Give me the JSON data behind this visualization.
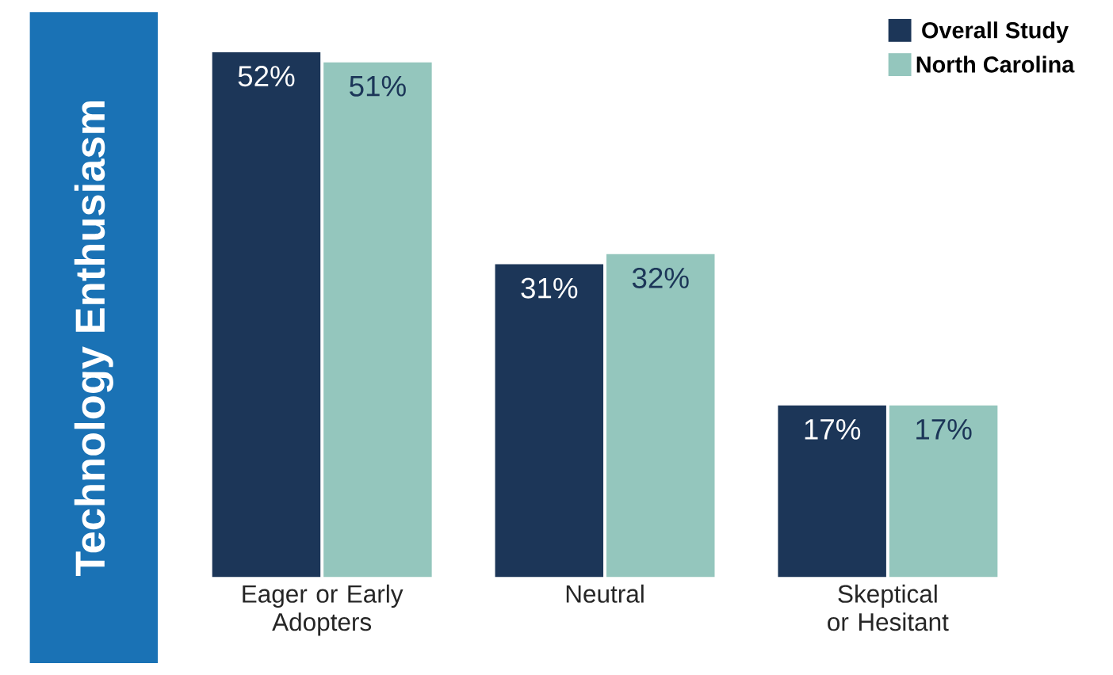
{
  "chart_data": {
    "type": "bar",
    "ylabel": "Technology Enthusiasm",
    "categories": [
      "Eager or Early Adopters",
      "Neutral",
      "Skeptical or Hesitant"
    ],
    "series": [
      {
        "name": "Overall Study",
        "color": "#1c3658",
        "values": [
          52,
          31,
          17
        ],
        "value_labels": [
          "52%",
          "31%",
          "17%"
        ]
      },
      {
        "name": "North Carolina",
        "color": "#94c6bd",
        "values": [
          51,
          32,
          17
        ],
        "value_labels": [
          "51%",
          "32%",
          "17%"
        ]
      }
    ],
    "legend": "top right",
    "tick_labels": "x"
  }
}
